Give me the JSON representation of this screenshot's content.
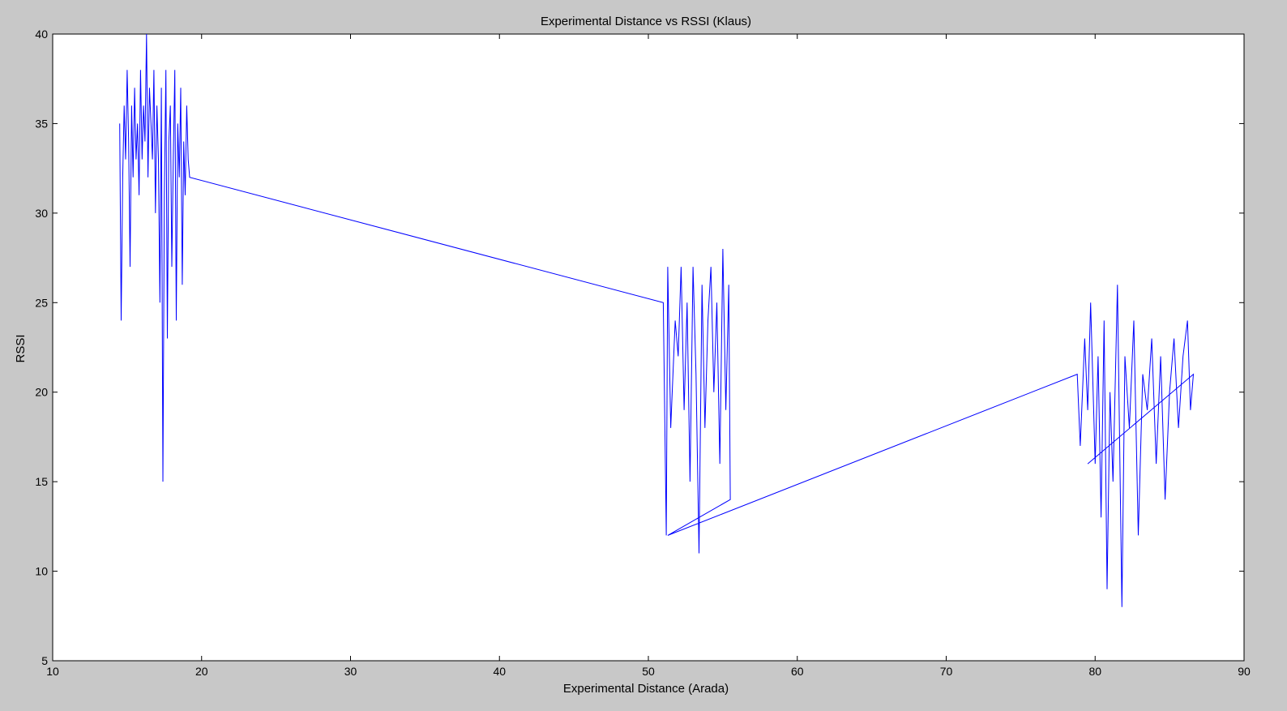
{
  "window": {
    "background_color": "#c8c8c8"
  },
  "chart_data": {
    "type": "line",
    "title": "Experimental Distance vs RSSI (Klaus)",
    "xlabel": "Experimental Distance (Arada)",
    "ylabel": "RSSI",
    "xlim": [
      10,
      90
    ],
    "ylim": [
      5,
      40
    ],
    "xticks": [
      10,
      20,
      30,
      40,
      50,
      60,
      70,
      80,
      90
    ],
    "yticks": [
      5,
      10,
      15,
      20,
      25,
      30,
      35,
      40
    ],
    "grid": false,
    "line_color": "#0000ff",
    "series": [
      {
        "x": [
          14.5,
          14.6,
          14.7,
          14.8,
          14.9,
          15.0,
          15.1,
          15.2,
          15.3,
          15.4,
          15.5,
          15.6,
          15.7,
          15.8,
          15.9,
          16.0,
          16.1,
          16.2,
          16.3,
          16.4,
          16.5,
          16.6,
          16.7,
          16.8,
          16.9,
          17.0,
          17.1,
          17.2,
          17.3,
          17.4,
          17.5,
          17.6,
          17.7,
          17.8,
          17.9,
          18.0,
          18.1,
          18.2,
          18.3,
          18.4,
          18.5,
          18.6,
          18.7,
          18.8,
          18.9,
          19.0,
          19.1,
          19.2,
          51.0,
          51.2,
          51.3,
          51.5,
          51.8,
          52.0,
          52.2,
          52.4,
          52.6,
          52.8,
          53.0,
          53.2,
          53.4,
          53.6,
          53.8,
          54.0,
          54.2,
          54.4,
          54.6,
          54.8,
          55.0,
          55.2,
          55.4,
          55.5,
          51.3,
          78.8,
          79.0,
          79.3,
          79.5,
          79.7,
          80.0,
          80.2,
          80.4,
          80.6,
          80.8,
          81.0,
          81.2,
          81.5,
          81.8,
          82.0,
          82.3,
          82.6,
          82.9,
          83.2,
          83.5,
          83.8,
          84.1,
          84.4,
          84.7,
          85.0,
          85.3,
          85.6,
          85.9,
          86.2,
          86.4,
          86.6,
          79.5
        ],
        "y": [
          35,
          24,
          32,
          36,
          33,
          38,
          34,
          27,
          36,
          32,
          37,
          33,
          35,
          31,
          38,
          33,
          36,
          34,
          40,
          32,
          37,
          35,
          33,
          38,
          30,
          36,
          33,
          25,
          37,
          15,
          31,
          38,
          23,
          34,
          36,
          27,
          33,
          38,
          24,
          35,
          32,
          37,
          26,
          34,
          31,
          36,
          33,
          32,
          25,
          12,
          27,
          18,
          24,
          22,
          27,
          19,
          25,
          15,
          27,
          21,
          11,
          26,
          18,
          24,
          27,
          20,
          25,
          16,
          28,
          19,
          26,
          14,
          12,
          21,
          17,
          23,
          19,
          25,
          16,
          22,
          13,
          24,
          9,
          20,
          15,
          26,
          8,
          22,
          18,
          24,
          12,
          21,
          19,
          23,
          16,
          22,
          14,
          20,
          23,
          18,
          22,
          24,
          19,
          21,
          16
        ]
      }
    ]
  }
}
